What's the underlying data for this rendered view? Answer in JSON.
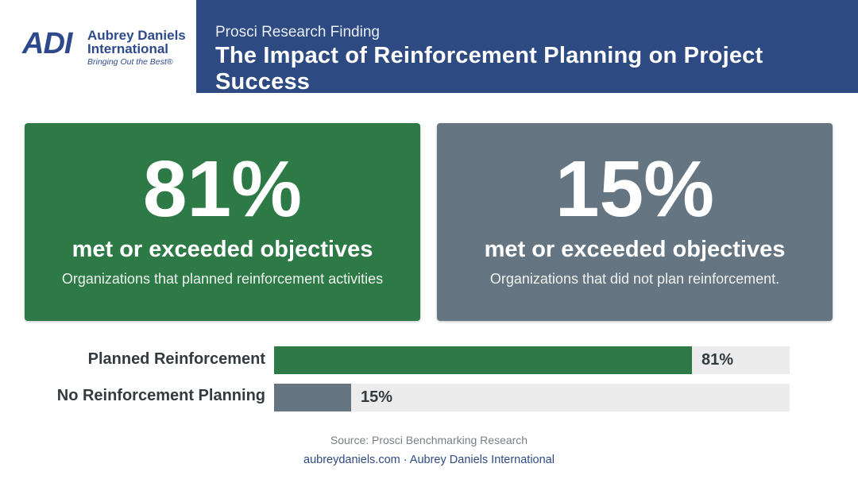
{
  "logo": {
    "mark": "ADI",
    "name_line1": "Aubrey Daniels",
    "name_line2": "International",
    "tagline": "Bringing Out the Best®"
  },
  "header": {
    "subtitle": "Prosci Research Finding",
    "title": "The Impact of Reinforcement Planning on Project Success"
  },
  "cards": [
    {
      "value": "81%",
      "headline": "met or exceeded objectives",
      "description": "Organizations that planned reinforcement activities",
      "color": "#2e7a47"
    },
    {
      "value": "15%",
      "headline": "met or exceeded objectives",
      "description": "Organizations that did not plan reinforcement.",
      "color": "#667582"
    }
  ],
  "chart_data": {
    "type": "bar",
    "orientation": "horizontal",
    "categories": [
      "Planned Reinforcement",
      "No Reinforcement Planning"
    ],
    "values": [
      81,
      15
    ],
    "value_labels": [
      "81%",
      "15%"
    ],
    "colors": [
      "#2e7a47",
      "#667582"
    ],
    "xlim": [
      0,
      100
    ]
  },
  "footer": {
    "source": "Source: Prosci Benchmarking Research",
    "site": "aubreydaniels.com · Aubrey Daniels International"
  }
}
